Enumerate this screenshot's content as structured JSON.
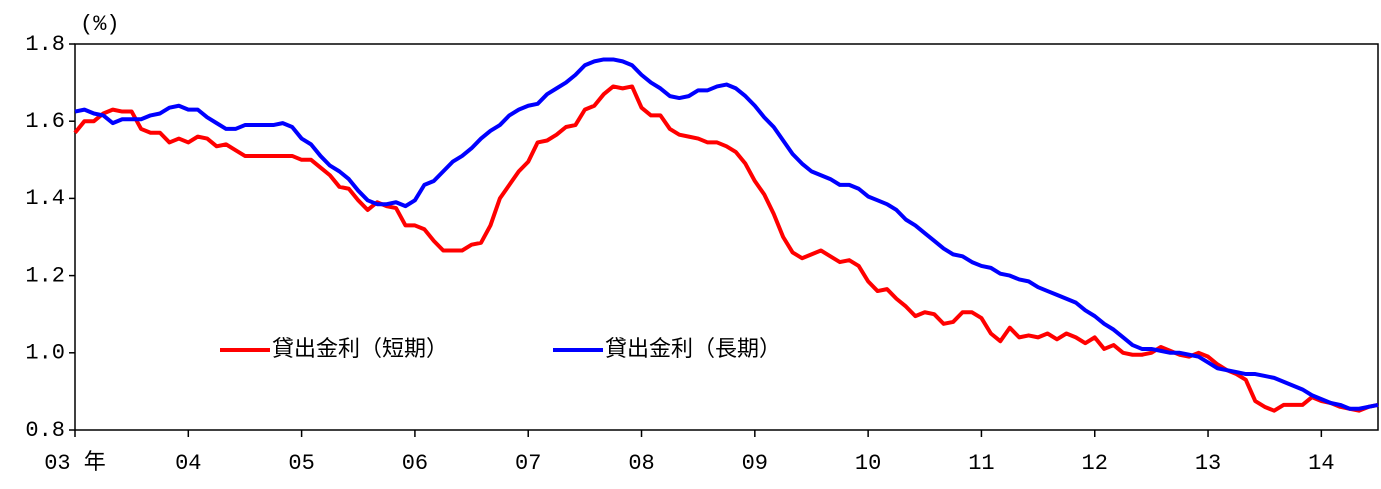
{
  "chart_data": {
    "type": "line",
    "y_label": "(%)",
    "categories": [
      "03 年",
      null,
      null,
      null,
      null,
      null,
      null,
      null,
      null,
      null,
      null,
      null,
      "04",
      null,
      null,
      null,
      null,
      null,
      null,
      null,
      null,
      null,
      null,
      null,
      "05",
      null,
      null,
      null,
      null,
      null,
      null,
      null,
      null,
      null,
      null,
      null,
      "06",
      null,
      null,
      null,
      null,
      null,
      null,
      null,
      null,
      null,
      null,
      null,
      "07",
      null,
      null,
      null,
      null,
      null,
      null,
      null,
      null,
      null,
      null,
      null,
      "08",
      null,
      null,
      null,
      null,
      null,
      null,
      null,
      null,
      null,
      null,
      null,
      "09",
      null,
      null,
      null,
      null,
      null,
      null,
      null,
      null,
      null,
      null,
      null,
      "10",
      null,
      null,
      null,
      null,
      null,
      null,
      null,
      null,
      null,
      null,
      null,
      "11",
      null,
      null,
      null,
      null,
      null,
      null,
      null,
      null,
      null,
      null,
      null,
      "12",
      null,
      null,
      null,
      null,
      null,
      null,
      null,
      null,
      null,
      null,
      null,
      "13",
      null,
      null,
      null,
      null,
      null,
      null,
      null,
      null,
      null,
      null,
      null,
      "14",
      null,
      null,
      null,
      null,
      null,
      null
    ],
    "series": [
      {
        "name": "貸出金利（短期）",
        "color": "#ff0000",
        "values": [
          1.57,
          1.6,
          1.6,
          1.62,
          1.63,
          1.625,
          1.625,
          1.58,
          1.57,
          1.57,
          1.545,
          1.555,
          1.545,
          1.56,
          1.555,
          1.535,
          1.54,
          1.525,
          1.51,
          1.51,
          1.51,
          1.51,
          1.51,
          1.51,
          1.5,
          1.5,
          1.48,
          1.46,
          1.43,
          1.425,
          1.395,
          1.37,
          1.39,
          1.38,
          1.375,
          1.33,
          1.33,
          1.32,
          1.29,
          1.265,
          1.265,
          1.265,
          1.28,
          1.285,
          1.33,
          1.4,
          1.435,
          1.47,
          1.495,
          1.545,
          1.55,
          1.565,
          1.585,
          1.59,
          1.63,
          1.64,
          1.67,
          1.69,
          1.685,
          1.69,
          1.635,
          1.615,
          1.615,
          1.58,
          1.565,
          1.56,
          1.555,
          1.545,
          1.545,
          1.535,
          1.52,
          1.49,
          1.445,
          1.41,
          1.36,
          1.3,
          1.26,
          1.245,
          1.255,
          1.265,
          1.25,
          1.235,
          1.24,
          1.225,
          1.185,
          1.16,
          1.165,
          1.14,
          1.12,
          1.095,
          1.105,
          1.1,
          1.075,
          1.08,
          1.105,
          1.105,
          1.09,
          1.05,
          1.03,
          1.065,
          1.04,
          1.045,
          1.04,
          1.05,
          1.035,
          1.05,
          1.04,
          1.025,
          1.04,
          1.01,
          1.02,
          1.0,
          0.995,
          0.995,
          1.0,
          1.015,
          1.005,
          0.995,
          0.99,
          1.0,
          0.99,
          0.97,
          0.955,
          0.945,
          0.93,
          0.875,
          0.86,
          0.85,
          0.865,
          0.865,
          0.865,
          0.885,
          0.875,
          0.87,
          0.86,
          0.855,
          0.85,
          0.86,
          0.865
        ]
      },
      {
        "name": "貸出金利（長期）",
        "color": "#0000ff",
        "values": [
          1.625,
          1.63,
          1.62,
          1.615,
          1.595,
          1.605,
          1.605,
          1.605,
          1.615,
          1.62,
          1.635,
          1.64,
          1.63,
          1.63,
          1.61,
          1.595,
          1.58,
          1.58,
          1.59,
          1.59,
          1.59,
          1.59,
          1.595,
          1.585,
          1.555,
          1.54,
          1.51,
          1.485,
          1.47,
          1.45,
          1.42,
          1.395,
          1.385,
          1.385,
          1.39,
          1.38,
          1.395,
          1.435,
          1.445,
          1.47,
          1.495,
          1.51,
          1.53,
          1.555,
          1.575,
          1.59,
          1.615,
          1.63,
          1.64,
          1.645,
          1.67,
          1.685,
          1.7,
          1.72,
          1.745,
          1.755,
          1.76,
          1.76,
          1.755,
          1.745,
          1.72,
          1.7,
          1.685,
          1.665,
          1.66,
          1.665,
          1.68,
          1.68,
          1.69,
          1.695,
          1.685,
          1.665,
          1.64,
          1.61,
          1.585,
          1.55,
          1.515,
          1.49,
          1.47,
          1.46,
          1.45,
          1.435,
          1.435,
          1.425,
          1.405,
          1.395,
          1.385,
          1.37,
          1.345,
          1.33,
          1.31,
          1.29,
          1.27,
          1.255,
          1.25,
          1.235,
          1.225,
          1.22,
          1.205,
          1.2,
          1.19,
          1.185,
          1.17,
          1.16,
          1.15,
          1.14,
          1.13,
          1.11,
          1.095,
          1.075,
          1.06,
          1.04,
          1.02,
          1.01,
          1.01,
          1.005,
          1.0,
          1.0,
          0.995,
          0.99,
          0.975,
          0.96,
          0.955,
          0.95,
          0.945,
          0.945,
          0.94,
          0.935,
          0.925,
          0.915,
          0.905,
          0.89,
          0.88,
          0.87,
          0.865,
          0.855,
          0.855,
          0.86,
          0.865
        ]
      }
    ],
    "ylim": [
      0.8,
      1.8
    ],
    "yticks": [
      0.8,
      {
        "value": 1.0,
        "label": "1.0"
      },
      1.2,
      1.4,
      1.6,
      1.8
    ],
    "grid": false
  }
}
